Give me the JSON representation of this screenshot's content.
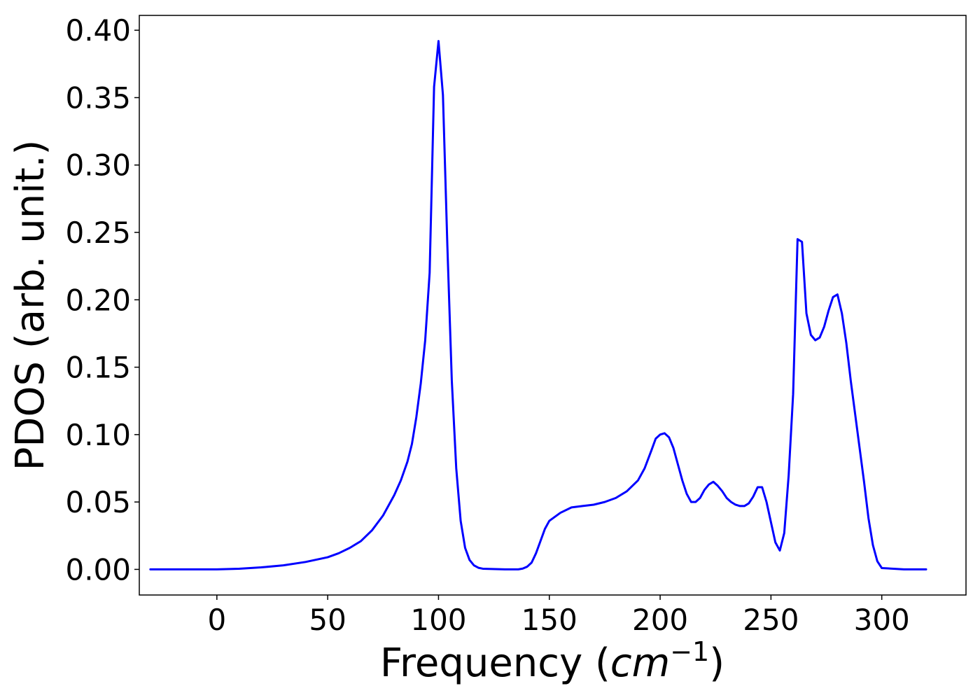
{
  "chart_data": {
    "type": "line",
    "title": "",
    "xlabel": {
      "prefix": "Frequency (",
      "unit": "cm",
      "exponent": "−1",
      "suffix": ")"
    },
    "ylabel": "PDOS (arb. unit.)",
    "xlim": [
      -35,
      338
    ],
    "ylim": [
      -0.019,
      0.411
    ],
    "xticks": [
      0,
      50,
      100,
      150,
      200,
      250,
      300
    ],
    "xtick_labels": [
      "0",
      "50",
      "100",
      "150",
      "200",
      "250",
      "300"
    ],
    "yticks": [
      0.0,
      0.05,
      0.1,
      0.15,
      0.2,
      0.25,
      0.3,
      0.35,
      0.4
    ],
    "ytick_labels": [
      "0.00",
      "0.05",
      "0.10",
      "0.15",
      "0.20",
      "0.25",
      "0.30",
      "0.35",
      "0.40"
    ],
    "grid": false,
    "line_color": "#0000ff",
    "series": [
      {
        "x": [
          -30,
          -20,
          -10,
          0,
          10,
          20,
          30,
          40,
          50,
          55,
          60,
          65,
          70,
          75,
          80,
          83,
          86,
          88,
          90,
          92,
          94,
          96,
          98,
          100,
          102,
          104,
          106,
          108,
          110,
          112,
          114,
          116,
          118,
          120,
          130,
          136,
          138,
          140,
          142,
          144,
          146,
          148,
          150,
          155,
          160,
          165,
          170,
          175,
          180,
          185,
          190,
          193,
          196,
          198,
          200,
          202,
          204,
          206,
          208,
          210,
          212,
          214,
          216,
          218,
          220,
          222,
          224,
          226,
          228,
          230,
          232,
          234,
          236,
          238,
          240,
          242,
          244,
          246,
          248,
          250,
          252,
          254,
          256,
          258,
          260,
          262,
          264,
          266,
          268,
          270,
          272,
          274,
          276,
          278,
          280,
          282,
          284,
          286,
          288,
          290,
          292,
          294,
          296,
          298,
          300,
          310,
          320
        ],
        "y": [
          0.0,
          0.0,
          0.0,
          0.0,
          0.0005,
          0.0015,
          0.003,
          0.0055,
          0.009,
          0.012,
          0.016,
          0.021,
          0.029,
          0.04,
          0.055,
          0.066,
          0.08,
          0.093,
          0.113,
          0.138,
          0.17,
          0.22,
          0.358,
          0.392,
          0.352,
          0.24,
          0.14,
          0.075,
          0.036,
          0.016,
          0.007,
          0.003,
          0.0012,
          0.0005,
          0.0,
          0.0,
          0.0006,
          0.002,
          0.005,
          0.012,
          0.021,
          0.03,
          0.036,
          0.042,
          0.046,
          0.047,
          0.048,
          0.05,
          0.053,
          0.058,
          0.066,
          0.075,
          0.088,
          0.097,
          0.1,
          0.101,
          0.098,
          0.09,
          0.078,
          0.066,
          0.056,
          0.05,
          0.05,
          0.053,
          0.059,
          0.063,
          0.065,
          0.062,
          0.058,
          0.053,
          0.05,
          0.048,
          0.047,
          0.047,
          0.049,
          0.054,
          0.061,
          0.061,
          0.05,
          0.035,
          0.02,
          0.014,
          0.027,
          0.07,
          0.13,
          0.245,
          0.243,
          0.19,
          0.174,
          0.17,
          0.172,
          0.18,
          0.192,
          0.202,
          0.204,
          0.19,
          0.168,
          0.14,
          0.115,
          0.09,
          0.065,
          0.038,
          0.018,
          0.006,
          0.001,
          0.0,
          0.0
        ]
      }
    ]
  }
}
